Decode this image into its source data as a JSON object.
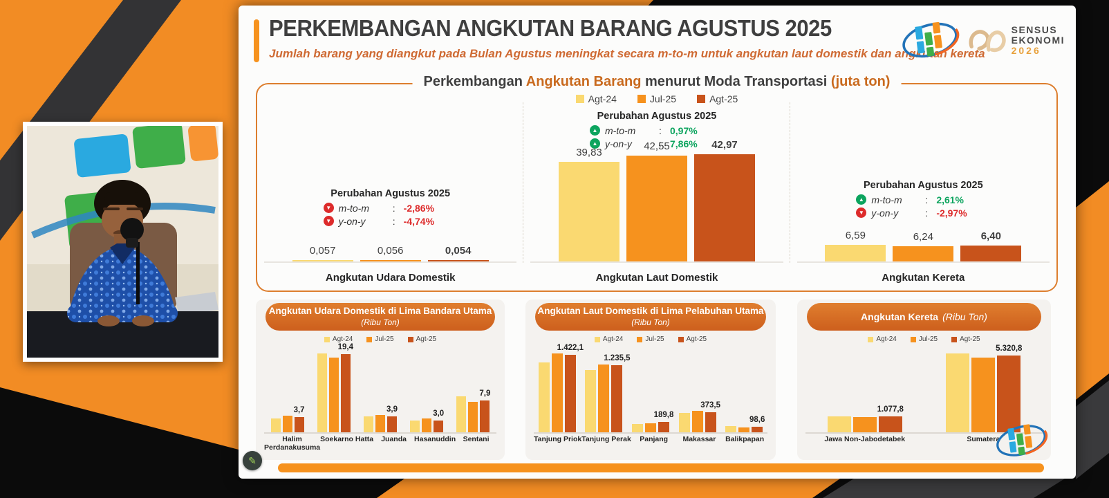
{
  "header": {
    "title": "PERKEMBANGAN ANGKUTAN BARANG AGUSTUS 2025",
    "subtitle": "Jumlah barang yang diangkut pada Bulan Agustus meningkat secara m-to-m untuk angkutan laut domestik dan angkutan kereta",
    "sensus": {
      "line1": "SENSUS",
      "line2": "EKONOMI",
      "line3": "2026"
    }
  },
  "ui": {
    "colon": ":",
    "pencil": "✎"
  },
  "legend": [
    "Agt-24",
    "Jul-25",
    "Agt-25"
  ],
  "colors": {
    "agt24": "#FAD971",
    "jul25": "#F6921E",
    "agt25": "#C8531B",
    "accent_orange": "#DD7E2E",
    "green": "#0CA45E",
    "red": "#DD2B2B",
    "stripe_orange": "#F28C24",
    "stripe_gray": "#3A3A3C",
    "title_dark": "#3F3F3F"
  },
  "main_chart_title": {
    "p1": "Perkembangan ",
    "p2": "Angkutan Barang",
    "p3": " menurut Moda Transportasi ",
    "p4": "(juta ton)"
  },
  "chart_data": [
    {
      "id": "moda",
      "type": "bar",
      "title": "Perkembangan Angkutan Barang menurut Moda Transportasi",
      "unit": "juta ton",
      "series_names": [
        "Agt-24",
        "Jul-25",
        "Agt-25"
      ],
      "legend_position": "top",
      "grid": false,
      "groups": [
        {
          "category": "Angkutan Udara Domestik",
          "values": [
            0.057,
            0.056,
            0.054
          ],
          "labels": [
            "0,057",
            "0,056",
            "0,054"
          ],
          "change": {
            "title": "Perubahan Agustus 2025",
            "rows": [
              {
                "label": "m-to-m",
                "value": "-2,86%",
                "dir": "down"
              },
              {
                "label": "y-on-y",
                "value": "-4,74%",
                "dir": "down"
              }
            ]
          }
        },
        {
          "category": "Angkutan Laut Domestik",
          "values": [
            39.83,
            42.55,
            42.97
          ],
          "labels": [
            "39,83",
            "42,55",
            "42,97"
          ],
          "change": {
            "title": "Perubahan Agustus 2025",
            "rows": [
              {
                "label": "m-to-m",
                "value": "0,97%",
                "dir": "up"
              },
              {
                "label": "y-on-y",
                "value": "7,86%",
                "dir": "up"
              }
            ]
          }
        },
        {
          "category": "Angkutan Kereta",
          "values": [
            6.59,
            6.24,
            6.4
          ],
          "labels": [
            "6,59",
            "6,24",
            "6,40"
          ],
          "change": {
            "title": "Perubahan Agustus 2025",
            "rows": [
              {
                "label": "m-to-m",
                "value": "2,61%",
                "dir": "up"
              },
              {
                "label": "y-on-y",
                "value": "-2,97%",
                "dir": "down"
              }
            ]
          }
        }
      ]
    },
    {
      "id": "bandara",
      "type": "bar",
      "title": "Angkutan Udara Domestik di Lima Bandara Utama",
      "unit": "(Ribu Ton)",
      "categories": [
        "Halim\nPerdanakusuma",
        "Soekarno Hatta",
        "Juanda",
        "Hasanuddin",
        "Sentani"
      ],
      "series": [
        {
          "name": "Agt-24",
          "values": [
            3.4,
            19.6,
            4.0,
            2.9,
            8.9
          ]
        },
        {
          "name": "Jul-25",
          "values": [
            4.1,
            18.6,
            4.3,
            3.4,
            7.5
          ]
        },
        {
          "name": "Agt-25",
          "values": [
            3.7,
            19.4,
            3.9,
            3.0,
            7.9
          ]
        }
      ],
      "value_labels_series": "Agt-25",
      "value_labels": [
        "3,7",
        "19,4",
        "3,9",
        "3,0",
        "7,9"
      ]
    },
    {
      "id": "pelabuhan",
      "type": "bar",
      "title": "Angkutan Laut Domestik di Lima Pelabuhan Utama",
      "unit": "(Ribu Ton)",
      "categories": [
        "Tanjung Priok",
        "Tanjung Perak",
        "Panjang",
        "Makassar",
        "Balikpapan"
      ],
      "series": [
        {
          "name": "Agt-24",
          "values": [
            1280,
            1140,
            150,
            350,
            115
          ]
        },
        {
          "name": "Jul-25",
          "values": [
            1450,
            1250,
            160,
            390,
            85
          ]
        },
        {
          "name": "Agt-25",
          "values": [
            1422.1,
            1235.5,
            189.8,
            373.5,
            98.6
          ]
        }
      ],
      "value_labels_series": "Agt-25",
      "value_labels": [
        "1.422,1",
        "1.235,5",
        "189,8",
        "373,5",
        "98,6"
      ]
    },
    {
      "id": "kereta-wilayah",
      "type": "bar",
      "title": "Angkutan Kereta",
      "unit": "(Ribu Ton)",
      "categories": [
        "Jawa Non-Jabodetabek",
        "Sumatera"
      ],
      "series": [
        {
          "name": "Agt-24",
          "values": [
            1090,
            5450
          ]
        },
        {
          "name": "Jul-25",
          "values": [
            1050,
            5150
          ]
        },
        {
          "name": "Agt-25",
          "values": [
            1077.8,
            5320.8
          ]
        }
      ],
      "value_labels_series": "Agt-25",
      "value_labels": [
        "1.077,8",
        "5.320,8"
      ]
    }
  ]
}
